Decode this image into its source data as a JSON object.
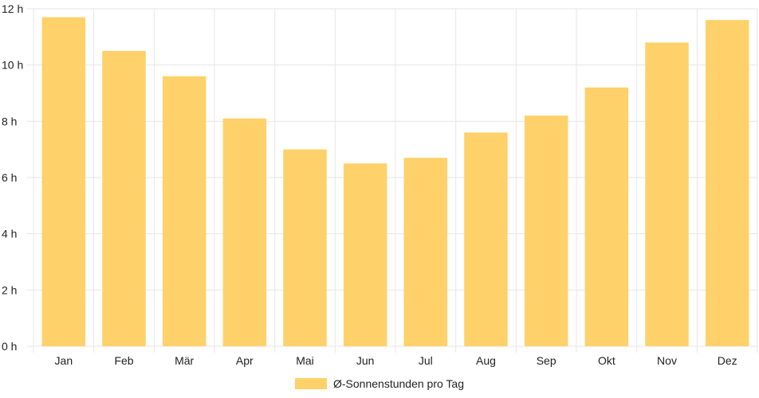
{
  "chart_data": {
    "type": "bar",
    "categories": [
      "Jan",
      "Feb",
      "Mär",
      "Apr",
      "Mai",
      "Jun",
      "Jul",
      "Aug",
      "Sep",
      "Okt",
      "Nov",
      "Dez"
    ],
    "series": [
      {
        "name": "Ø-Sonnenstunden pro Tag",
        "values": [
          11.7,
          10.5,
          9.6,
          8.1,
          7.0,
          6.5,
          6.7,
          7.6,
          8.2,
          9.2,
          10.8,
          11.6
        ],
        "color": "#fed16a"
      }
    ],
    "ylim": [
      0,
      12
    ],
    "yticks": [
      0,
      2,
      4,
      6,
      8,
      10,
      12
    ],
    "ytick_suffix": " h",
    "ytick_labels": [
      "0 h",
      "2 h",
      "4 h",
      "6 h",
      "8 h",
      "10 h",
      "12 h"
    ],
    "grid": true,
    "gridColor": "#e6e6e6",
    "legend": "bottom-center"
  }
}
